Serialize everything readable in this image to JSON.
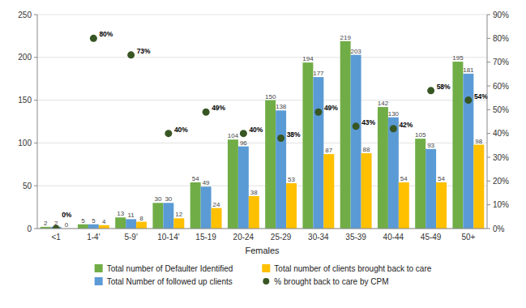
{
  "chart_data": {
    "type": "bar",
    "xlabel": "Females",
    "categories": [
      "<1",
      "1-4'",
      "5-9'",
      "10-14'",
      "15-19",
      "20-24",
      "25-29",
      "30-34",
      "35-39",
      "40-44",
      "45-49",
      "50+"
    ],
    "series": [
      {
        "name": "Total number of Defaulter Identified",
        "type": "bar",
        "color": "#70ad47",
        "values": [
          2,
          5,
          13,
          30,
          54,
          104,
          150,
          194,
          219,
          142,
          105,
          195
        ]
      },
      {
        "name": "Total Number of followed up clients",
        "type": "bar",
        "color": "#5b9bd5",
        "values": [
          2,
          5,
          11,
          30,
          49,
          96,
          138,
          177,
          203,
          130,
          93,
          181
        ]
      },
      {
        "name": "Total number of clients brought back to care",
        "type": "bar",
        "color": "#ffc000",
        "values": [
          0,
          4,
          8,
          12,
          24,
          38,
          53,
          87,
          88,
          54,
          54,
          98
        ]
      },
      {
        "name": "% brought back to care by CPM",
        "type": "scatter",
        "marker": "circle",
        "axis": "y2",
        "color": "#375623",
        "values": [
          0,
          80,
          73,
          40,
          49,
          40,
          38,
          49,
          43,
          42,
          58,
          54
        ],
        "value_labels": [
          "0%",
          "80%",
          "73%",
          "40%",
          "49%",
          "40%",
          "38%",
          "49%",
          "43%",
          "42%",
          "58%",
          "54%"
        ]
      }
    ],
    "ylim": [
      0,
      250
    ],
    "yticks": [
      0,
      50,
      100,
      150,
      200,
      250
    ],
    "y2lim": [
      0,
      90
    ],
    "y2ticks": [
      {
        "value": 0,
        "label": "0%"
      },
      {
        "value": 10,
        "label": "10%"
      },
      {
        "value": 20,
        "label": "20%"
      },
      {
        "value": 30,
        "label": "30%"
      },
      {
        "value": 40,
        "label": "40%"
      },
      {
        "value": 50,
        "label": "50%"
      },
      {
        "value": 60,
        "label": "60%"
      },
      {
        "value": 70,
        "label": "70%"
      },
      {
        "value": 80,
        "label": "80%"
      },
      {
        "value": 90,
        "label": "90%"
      }
    ],
    "grid": true,
    "data_labels": true,
    "legend": "bottom"
  }
}
